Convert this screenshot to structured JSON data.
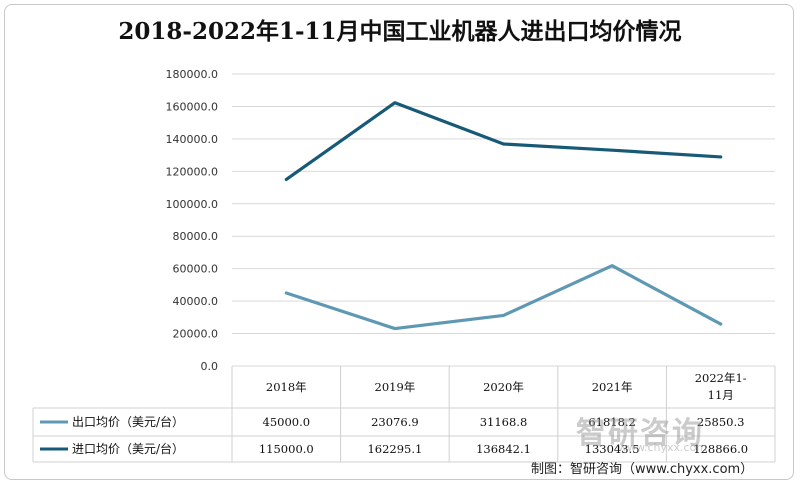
{
  "chart_data": {
    "type": "line",
    "title": "2018-2022年1-11月中国工业机器人进出口均价情况",
    "categories": [
      "2018年",
      "2019年",
      "2020年",
      "2021年",
      "2022年1-11月"
    ],
    "ylim": [
      0,
      180000
    ],
    "yticks": [
      "0.0",
      "20000.0",
      "40000.0",
      "60000.0",
      "80000.0",
      "100000.0",
      "120000.0",
      "140000.0",
      "160000.0",
      "180000.0"
    ],
    "grid": true,
    "legend": "table-below",
    "series": [
      {
        "name": "出口均价（美元/台）",
        "color": "#5f98b3",
        "values": [
          45000.0,
          23076.9,
          31168.8,
          61818.2,
          25850.3
        ],
        "labels": [
          "45000.0",
          "23076.9",
          "31168.8",
          "61818.2",
          "25850.3"
        ]
      },
      {
        "name": "进口均价（美元/台）",
        "color": "#175a78",
        "values": [
          115000.0,
          162295.1,
          136842.1,
          133043.5,
          128866.0
        ],
        "labels": [
          "115000.0",
          "162295.1",
          "136842.1",
          "133043.5",
          "128866.0"
        ]
      }
    ]
  },
  "footer": {
    "credit": "制图：智研咨询（www.chyxx.com）",
    "watermark": "智研咨询",
    "watermark_sub": "www.chyxx.com"
  }
}
